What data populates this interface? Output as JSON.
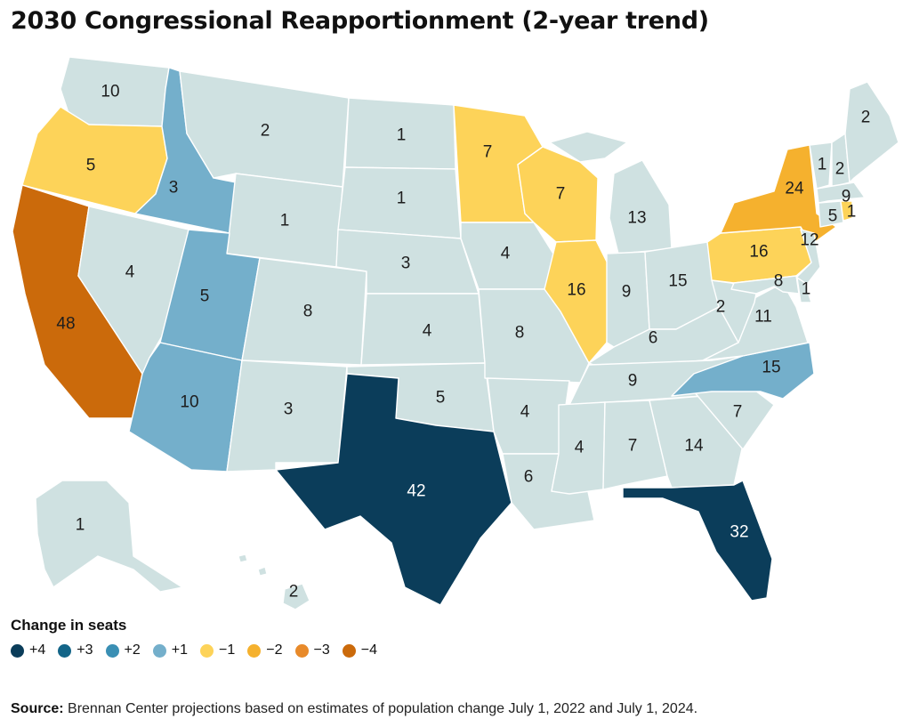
{
  "title": "2030 Congressional Reapportionment (2-year trend)",
  "legend": {
    "title": "Change in seats",
    "items": [
      {
        "label": "+4",
        "color": "#0b3d5a"
      },
      {
        "label": "+3",
        "color": "#136588"
      },
      {
        "label": "+2",
        "color": "#3a8fb4"
      },
      {
        "label": "+1",
        "color": "#74afcb"
      },
      {
        "label": "−1",
        "color": "#fdd359"
      },
      {
        "label": "−2",
        "color": "#f5b12e"
      },
      {
        "label": "−3",
        "color": "#e88a2a"
      },
      {
        "label": "−4",
        "color": "#cb6a0b"
      }
    ]
  },
  "neutral_color": "#cfe1e1",
  "source": {
    "label": "Source:",
    "text": " Brennan Center projections based on estimates of population change July 1, 2022 and July 1, 2024."
  },
  "states": [
    {
      "id": "WA",
      "seats": "10",
      "change": 0
    },
    {
      "id": "OR",
      "seats": "5",
      "change": -1
    },
    {
      "id": "CA",
      "seats": "48",
      "change": -4
    },
    {
      "id": "NV",
      "seats": "4",
      "change": 0
    },
    {
      "id": "ID",
      "seats": "3",
      "change": 1
    },
    {
      "id": "MT",
      "seats": "2",
      "change": 0
    },
    {
      "id": "WY",
      "seats": "1",
      "change": 0
    },
    {
      "id": "UT",
      "seats": "5",
      "change": 1
    },
    {
      "id": "AZ",
      "seats": "10",
      "change": 1
    },
    {
      "id": "CO",
      "seats": "8",
      "change": 0
    },
    {
      "id": "NM",
      "seats": "3",
      "change": 0
    },
    {
      "id": "ND",
      "seats": "1",
      "change": 0
    },
    {
      "id": "SD",
      "seats": "1",
      "change": 0
    },
    {
      "id": "NE",
      "seats": "3",
      "change": 0
    },
    {
      "id": "KS",
      "seats": "4",
      "change": 0
    },
    {
      "id": "OK",
      "seats": "5",
      "change": 0
    },
    {
      "id": "TX",
      "seats": "42",
      "change": 4
    },
    {
      "id": "MN",
      "seats": "7",
      "change": -1
    },
    {
      "id": "IA",
      "seats": "4",
      "change": 0
    },
    {
      "id": "MO",
      "seats": "8",
      "change": 0
    },
    {
      "id": "AR",
      "seats": "4",
      "change": 0
    },
    {
      "id": "LA",
      "seats": "6",
      "change": 0
    },
    {
      "id": "WI",
      "seats": "7",
      "change": -1
    },
    {
      "id": "IL",
      "seats": "16",
      "change": -1
    },
    {
      "id": "MI",
      "seats": "13",
      "change": 0
    },
    {
      "id": "IN",
      "seats": "9",
      "change": 0
    },
    {
      "id": "OH",
      "seats": "15",
      "change": 0
    },
    {
      "id": "KY",
      "seats": "6",
      "change": 0
    },
    {
      "id": "TN",
      "seats": "9",
      "change": 0
    },
    {
      "id": "MS",
      "seats": "4",
      "change": 0
    },
    {
      "id": "AL",
      "seats": "7",
      "change": 0
    },
    {
      "id": "GA",
      "seats": "14",
      "change": 0
    },
    {
      "id": "FL",
      "seats": "32",
      "change": 4
    },
    {
      "id": "SC",
      "seats": "7",
      "change": 0
    },
    {
      "id": "NC",
      "seats": "15",
      "change": 1
    },
    {
      "id": "VA",
      "seats": "11",
      "change": 0
    },
    {
      "id": "WV",
      "seats": "2",
      "change": 0
    },
    {
      "id": "PA",
      "seats": "16",
      "change": -1
    },
    {
      "id": "NY",
      "seats": "24",
      "change": -2
    },
    {
      "id": "NJ",
      "seats": "12",
      "change": 0
    },
    {
      "id": "MD",
      "seats": "8",
      "change": 0
    },
    {
      "id": "DE",
      "seats": "1",
      "change": 0
    },
    {
      "id": "VT",
      "seats": "1",
      "change": 0
    },
    {
      "id": "NH",
      "seats": "2",
      "change": 0
    },
    {
      "id": "ME",
      "seats": "2",
      "change": 0
    },
    {
      "id": "MA",
      "seats": "9",
      "change": 0
    },
    {
      "id": "CT",
      "seats": "5",
      "change": 0
    },
    {
      "id": "RI",
      "seats": "1",
      "change": -1
    },
    {
      "id": "AK",
      "seats": "1",
      "change": 0
    },
    {
      "id": "HI",
      "seats": "2",
      "change": 0
    }
  ]
}
